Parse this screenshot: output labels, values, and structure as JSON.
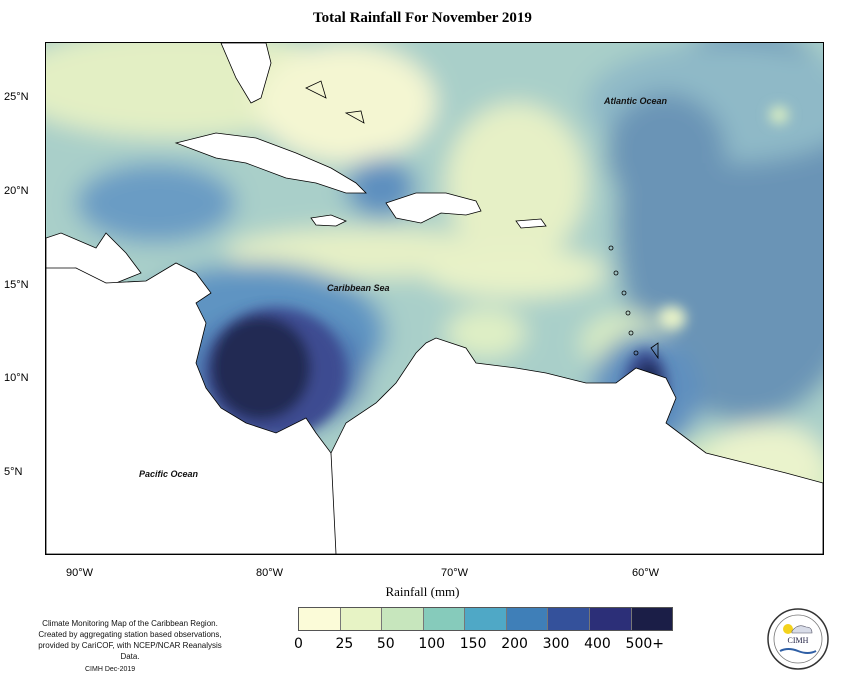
{
  "title": "Total Rainfall For November 2019",
  "map": {
    "lat_labels": [
      "25°N",
      "20°N",
      "15°N",
      "10°N",
      "5°N"
    ],
    "lon_labels": [
      "90°W",
      "80°W",
      "70°W",
      "60°W"
    ],
    "ocean_labels": {
      "atlantic": "Atlantic Ocean",
      "caribbean": "Caribbean Sea",
      "pacific": "Pacific Ocean"
    }
  },
  "legend": {
    "title": "Rainfall (mm)",
    "breaks": [
      "0",
      "25",
      "50",
      "100",
      "150",
      "200",
      "300",
      "400",
      "500+"
    ],
    "colors": [
      "#fbfbd8",
      "#e7f3c5",
      "#c7e6bd",
      "#86cbbb",
      "#4fa8c6",
      "#3f7fb8",
      "#34519b",
      "#2c2f78",
      "#1b1e47"
    ]
  },
  "footer": {
    "note": "Climate Monitoring Map of the Caribbean Region. Created by aggregating station based observations, provided by CariCOF, with NCEP/NCAR Reanalysis Data.",
    "credit": "CIMH Dec-2019",
    "logo_text": "CIMH"
  }
}
